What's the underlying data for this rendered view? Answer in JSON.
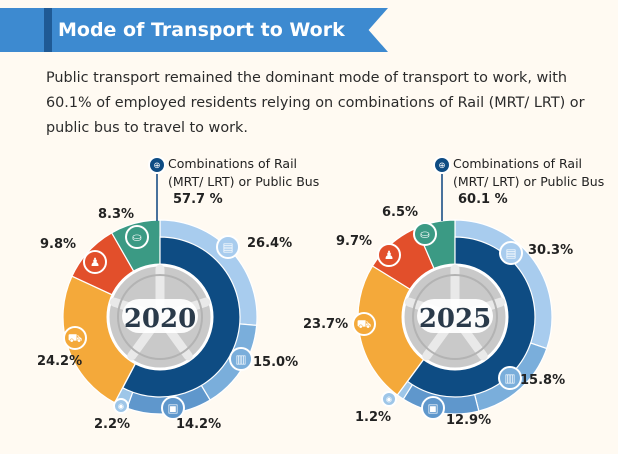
{
  "header": {
    "title": "Mode of Transport to Work",
    "intro": "Public transport remained the dominant mode of transport to work, with 60.1% of employed residents relying on combinations of Rail (MRT/ LRT) or public bus to travel to work."
  },
  "icons": {
    "combo": "transit-combo-icon",
    "train": "train-icon",
    "bus": "bus-icon",
    "taxi": "taxi-icon",
    "pmd": "personal-mobility-icon",
    "car": "car-icon",
    "walk": "walking-icon",
    "motorcycle": "motorcycle-icon"
  },
  "colors": {
    "combo": "#0e4c83",
    "train": "#a8ccee",
    "bus": "#7aaedb",
    "pmd": "#9ec6e8",
    "taxi": "#5f97cc",
    "car": "#f4a93a",
    "walk": "#e24f2b",
    "motorcycle": "#3b9a84"
  },
  "chart_data": [
    {
      "type": "pie",
      "title": "2020",
      "center_label": "2020",
      "categories": [
        "Combinations of Rail (MRT/ LRT) or Public Bus",
        "Train",
        "Bus",
        "Taxi/Private hire car",
        "Personal mobility",
        "Car",
        "Walk",
        "Motorcycle"
      ],
      "values": [
        57.7,
        26.4,
        15.0,
        14.2,
        2.2,
        24.2,
        9.8,
        8.3
      ],
      "labels": [
        "57.7 %",
        "26.4%",
        "15.0%",
        "14.2%",
        "2.2%",
        "24.2%",
        "9.8%",
        "8.3%"
      ],
      "combo_note": "Combinations of Rail (MRT/ LRT) or Public Bus"
    },
    {
      "type": "pie",
      "title": "2025",
      "center_label": "2025",
      "categories": [
        "Combinations of Rail (MRT/ LRT) or Public Bus",
        "Train",
        "Bus",
        "Taxi/Private hire car",
        "Personal mobility",
        "Car",
        "Walk",
        "Motorcycle"
      ],
      "values": [
        60.1,
        30.3,
        15.8,
        12.9,
        1.2,
        23.7,
        9.7,
        6.5
      ],
      "labels": [
        "60.1 %",
        "30.3%",
        "15.8%",
        "12.9%",
        "1.2%",
        "23.7%",
        "9.7%",
        "6.5%"
      ],
      "combo_note": "Combinations of Rail (MRT/ LRT) or Public Bus"
    }
  ]
}
